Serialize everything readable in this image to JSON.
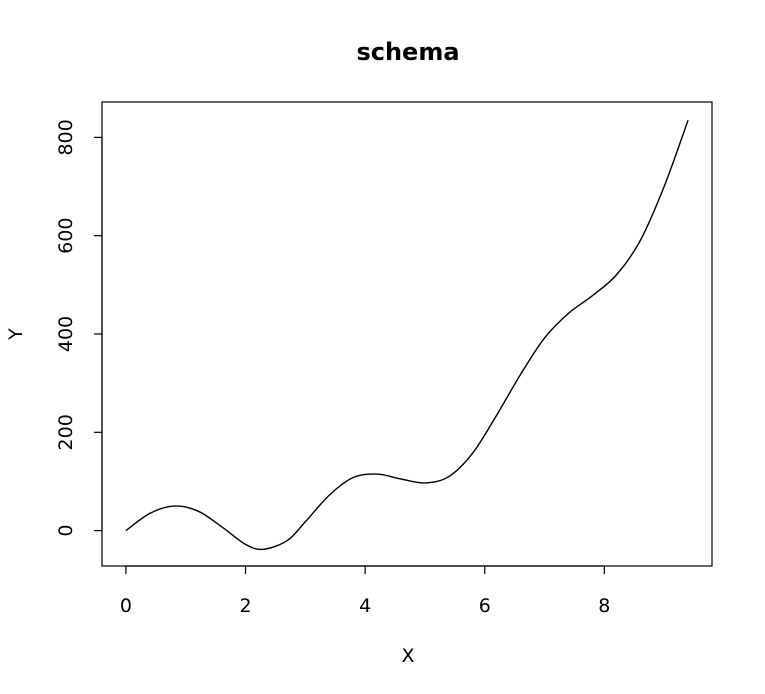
{
  "chart_data": {
    "type": "line",
    "title": "schema",
    "xlabel": "X",
    "ylabel": "Y",
    "xlim": [
      -0.4,
      9.8
    ],
    "ylim": [
      -72,
      872
    ],
    "x_ticks": [
      0,
      2,
      4,
      6,
      8
    ],
    "y_ticks": [
      0,
      200,
      400,
      600,
      800
    ],
    "x_tick_labels": [
      "0",
      "2",
      "4",
      "6",
      "8"
    ],
    "y_tick_labels": [
      "0",
      "200",
      "400",
      "600",
      "800"
    ],
    "grid": false,
    "legend": "none",
    "series": [
      {
        "color": "#000000",
        "x": [
          0,
          0.4,
          0.8,
          1.2,
          1.6,
          2.0,
          2.3,
          2.7,
          3.0,
          3.4,
          3.8,
          4.2,
          4.6,
          5.0,
          5.4,
          5.8,
          6.2,
          6.6,
          7.0,
          7.4,
          7.8,
          8.2,
          8.6,
          9.0,
          9.4
        ],
        "y": [
          0,
          35,
          50,
          40,
          8,
          -28,
          -38,
          -20,
          18,
          72,
          108,
          115,
          105,
          97,
          110,
          158,
          235,
          318,
          392,
          442,
          478,
          520,
          590,
          700,
          835
        ]
      }
    ]
  }
}
